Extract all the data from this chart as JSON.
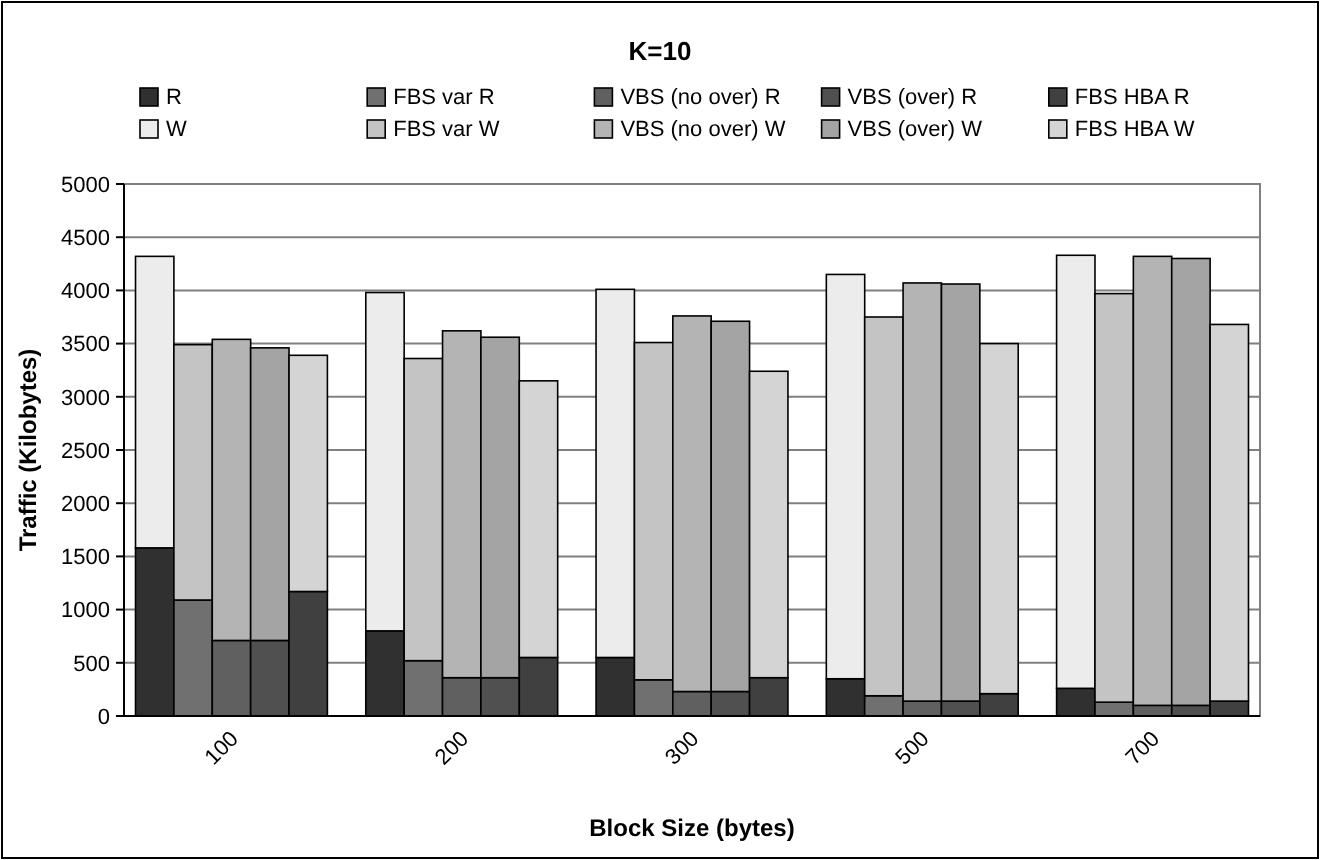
{
  "chart_data": {
    "type": "bar",
    "title": "K=10",
    "xlabel": "Block Size (bytes)",
    "ylabel": "Traffic (Kilobytes)",
    "categories": [
      null,
      null,
      "100",
      null,
      null,
      null,
      null,
      null,
      "200",
      null,
      null,
      null,
      null,
      null,
      "300",
      null,
      null,
      null,
      null,
      null,
      "500",
      null,
      null,
      null,
      null,
      null,
      "700",
      null,
      null
    ],
    "stacked": true,
    "ylim": [
      0,
      5000
    ],
    "yticks": [
      0,
      500,
      1000,
      1500,
      2000,
      2500,
      3000,
      3500,
      4000,
      4500,
      5000
    ],
    "grid": "y",
    "legend": "top",
    "series": [
      {
        "name": "R",
        "color": "#303030",
        "values": [
          1580,
          null,
          null,
          null,
          null,
          null,
          800,
          null,
          null,
          null,
          null,
          null,
          550,
          null,
          null,
          null,
          null,
          null,
          350,
          null,
          null,
          null,
          null,
          null,
          260,
          null,
          null,
          null,
          null
        ]
      },
      {
        "name": "W",
        "color": "#ececec",
        "values": [
          2740,
          null,
          null,
          null,
          null,
          null,
          3180,
          null,
          null,
          null,
          null,
          null,
          3460,
          null,
          null,
          null,
          null,
          null,
          3800,
          null,
          null,
          null,
          null,
          null,
          4070,
          null,
          null,
          null,
          null
        ]
      },
      {
        "name": "FBS var R",
        "color": "#707070",
        "values": [
          null,
          1090,
          null,
          null,
          null,
          null,
          null,
          520,
          null,
          null,
          null,
          null,
          null,
          340,
          null,
          null,
          null,
          null,
          null,
          190,
          null,
          null,
          null,
          null,
          null,
          130,
          null,
          null,
          null
        ]
      },
      {
        "name": "FBS var W",
        "color": "#c4c4c4",
        "values": [
          null,
          2400,
          null,
          null,
          null,
          null,
          null,
          2840,
          null,
          null,
          null,
          null,
          null,
          3170,
          null,
          null,
          null,
          null,
          null,
          3560,
          null,
          null,
          null,
          null,
          null,
          3840,
          null,
          null,
          null
        ]
      },
      {
        "name": "VBS (no over) R",
        "color": "#606060",
        "values": [
          null,
          null,
          710,
          null,
          null,
          null,
          null,
          null,
          360,
          null,
          null,
          null,
          null,
          null,
          230,
          null,
          null,
          null,
          null,
          null,
          140,
          null,
          null,
          null,
          null,
          null,
          100,
          null,
          null
        ]
      },
      {
        "name": "VBS (no over) W",
        "color": "#b4b4b4",
        "values": [
          null,
          null,
          2830,
          null,
          null,
          null,
          null,
          null,
          3260,
          null,
          null,
          null,
          null,
          null,
          3530,
          null,
          null,
          null,
          null,
          null,
          3930,
          null,
          null,
          null,
          null,
          null,
          4220,
          null,
          null
        ]
      },
      {
        "name": "VBS (over) R",
        "color": "#505050",
        "values": [
          null,
          null,
          null,
          710,
          null,
          null,
          null,
          null,
          null,
          360,
          null,
          null,
          null,
          null,
          null,
          230,
          null,
          null,
          null,
          null,
          null,
          140,
          null,
          null,
          null,
          null,
          null,
          100,
          null
        ]
      },
      {
        "name": "VBS (over) W",
        "color": "#a4a4a4",
        "values": [
          null,
          null,
          null,
          2750,
          null,
          null,
          null,
          null,
          null,
          3200,
          null,
          null,
          null,
          null,
          null,
          3480,
          null,
          null,
          null,
          null,
          null,
          3920,
          null,
          null,
          null,
          null,
          null,
          4200,
          null
        ]
      },
      {
        "name": "FBS HBA R",
        "color": "#404040",
        "values": [
          null,
          null,
          null,
          null,
          1170,
          null,
          null,
          null,
          null,
          null,
          550,
          null,
          null,
          null,
          null,
          null,
          360,
          null,
          null,
          null,
          null,
          null,
          210,
          null,
          null,
          null,
          null,
          null,
          140
        ]
      },
      {
        "name": "FBS HBA W",
        "color": "#d4d4d4",
        "values": [
          null,
          null,
          null,
          null,
          2220,
          null,
          null,
          null,
          null,
          null,
          2600,
          null,
          null,
          null,
          null,
          null,
          2880,
          null,
          null,
          null,
          null,
          null,
          3290,
          null,
          null,
          null,
          null,
          null,
          3540
        ]
      }
    ]
  }
}
